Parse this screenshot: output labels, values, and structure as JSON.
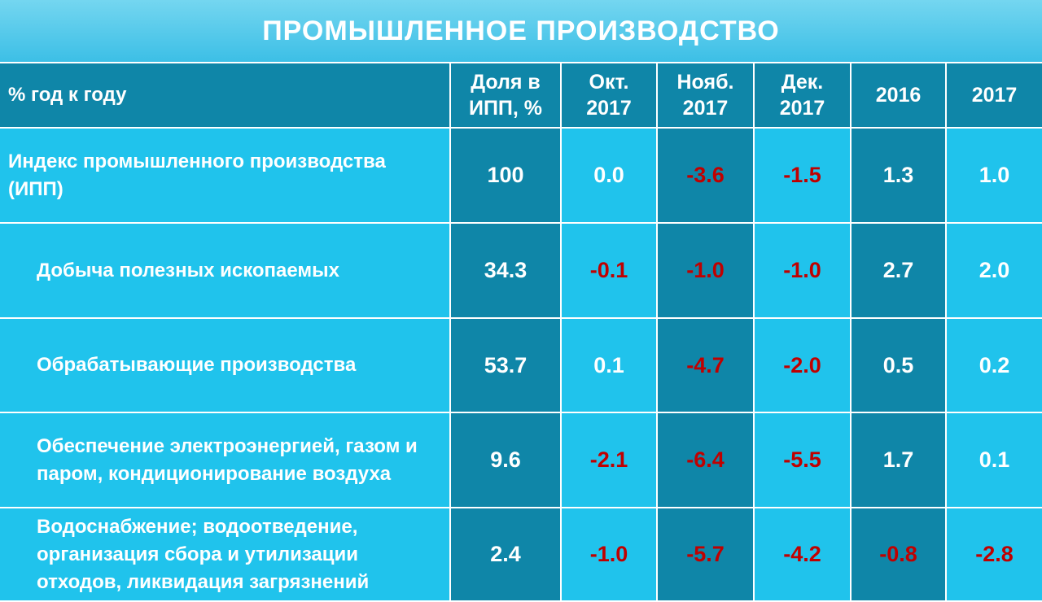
{
  "header": {
    "title": "ПРОМЫШЛЕННОЕ ПРОИЗВОДСТВО"
  },
  "table": {
    "columns": [
      "% год к году",
      "Доля в\nИПП, %",
      "Окт.\n2017",
      "Нояб.\n2017",
      "Дек.\n2017",
      "2016",
      "2017"
    ],
    "rows": [
      [
        "Индекс промышленного производства (ИПП)",
        "100",
        "0.0",
        "-3.6",
        "-1.5",
        "1.3",
        "1.0"
      ],
      [
        "Добыча полезных ископаемых",
        "34.3",
        "-0.1",
        "-1.0",
        "-1.0",
        "2.7",
        "2.0"
      ],
      [
        "Обрабатывающие производства",
        "53.7",
        "0.1",
        "-4.7",
        "-2.0",
        "0.5",
        "0.2"
      ],
      [
        "Обеспечение электроэнергией, газом и паром, кондиционирование воздуха",
        "9.6",
        "-2.1",
        "-6.4",
        "-5.5",
        "1.7",
        "0.1"
      ],
      [
        "Водоснабжение; водоотведение, организация сбора и утилизации отходов, ликвидация загрязнений",
        "2.4",
        "-1.0",
        "-5.7",
        "-4.2",
        "-0.8",
        "-2.8"
      ]
    ]
  }
}
